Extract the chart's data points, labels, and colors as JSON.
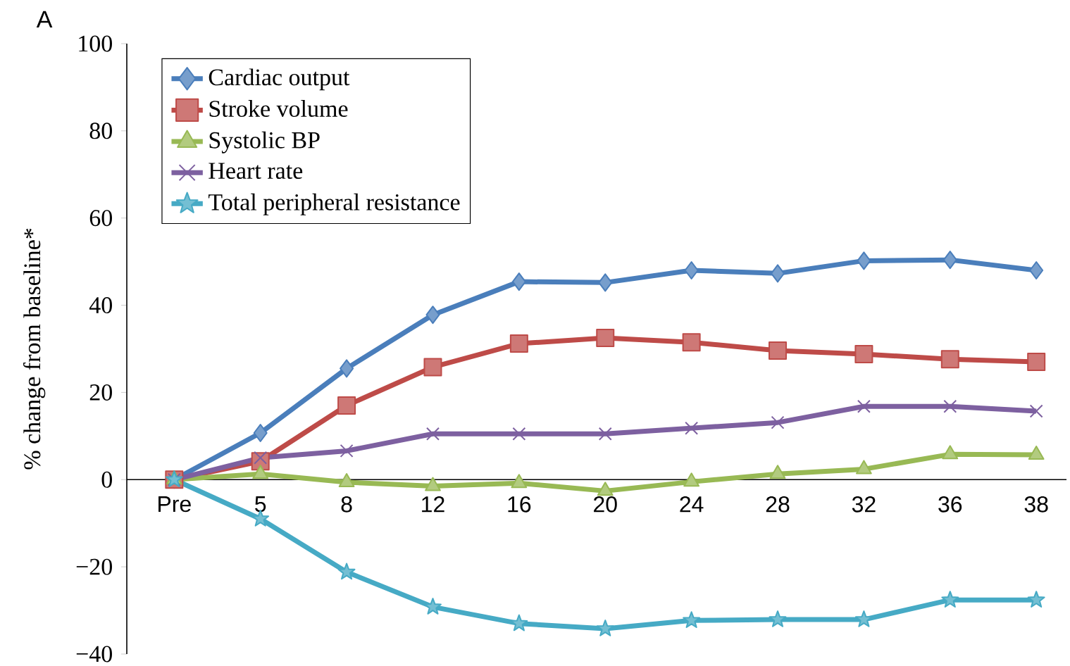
{
  "chart_data": {
    "type": "line",
    "ylabel": "% change from baseline*",
    "annotations": [
      "A"
    ],
    "categories": [
      "Pre",
      "5",
      "8",
      "12",
      "16",
      "20",
      "24",
      "28",
      "32",
      "36",
      "38"
    ],
    "ylim": [
      -40,
      100
    ],
    "yticks": [
      {
        "value": -40,
        "label": "−40"
      },
      {
        "value": -20,
        "label": "−20"
      },
      0,
      20,
      40,
      60,
      80,
      100
    ],
    "legend": "top left",
    "line_style": "solid",
    "series": [
      {
        "name": "Cardiac output",
        "color": "#4a7ebb",
        "marker": "diamond",
        "values": [
          0,
          10.7,
          25.5,
          37.8,
          45.4,
          45.2,
          48,
          47.3,
          50.2,
          50.4,
          48
        ]
      },
      {
        "name": "Stroke volume",
        "color": "#be4b48",
        "marker": "square",
        "values": [
          0,
          4.2,
          17,
          25.8,
          31.2,
          32.5,
          31.5,
          29.6,
          28.8,
          27.6,
          27
        ]
      },
      {
        "name": "Systolic BP",
        "color": "#98b954",
        "marker": "triangle",
        "values": [
          0,
          1.3,
          -0.6,
          -1.5,
          -0.8,
          -2.6,
          -0.5,
          1.3,
          2.4,
          5.8,
          5.7
        ]
      },
      {
        "name": "Heart rate",
        "color": "#7d60a0",
        "marker": "cross",
        "values": [
          0,
          5,
          6.6,
          10.5,
          10.5,
          10.5,
          11.8,
          13.1,
          16.8,
          16.8,
          15.7
        ]
      },
      {
        "name": "Total peripheral resistance",
        "color": "#46aac5",
        "marker": "star",
        "values": [
          0,
          -9,
          -21.2,
          -29.2,
          -33,
          -34.2,
          -32.3,
          -32.1,
          -32.1,
          -27.6,
          -27.6
        ]
      }
    ]
  }
}
